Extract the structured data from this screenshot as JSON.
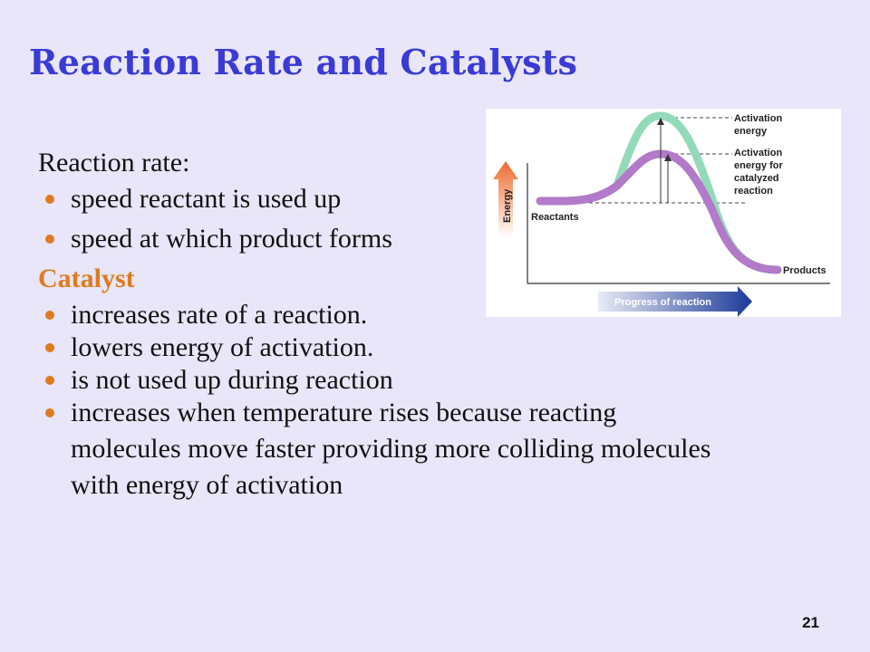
{
  "slide": {
    "title": "Reaction Rate and Catalysts",
    "page_number": "21"
  },
  "reaction_rate": {
    "heading": "Reaction rate:",
    "bullets": [
      "speed reactant is used up",
      "speed at which product forms"
    ]
  },
  "catalyst": {
    "heading": "Catalyst",
    "bullets": [
      "increases rate of a reaction.",
      "lowers energy of activation.",
      "is not used up during reaction",
      "increases when temperature rises because reacting molecules move faster providing more colliding molecules with energy of activation"
    ]
  },
  "diagram": {
    "energy_axis_label": "Energy",
    "progress_axis_label": "Progress of reaction",
    "reactants_label": "Reactants",
    "products_label": "Products",
    "activation_energy_label": [
      "Activation",
      "energy"
    ],
    "catalyzed_activation_label": [
      "Activation",
      "energy for",
      "catalyzed",
      "reaction"
    ],
    "colors": {
      "uncatalyzed_curve": "#93dbb8",
      "catalyzed_curve": "#b27ac8",
      "energy_arrow": "#ee6a2e",
      "progress_arrow": "#1c3a9a",
      "bullet": "#e07a1f",
      "title": "#3a3ad6"
    }
  }
}
